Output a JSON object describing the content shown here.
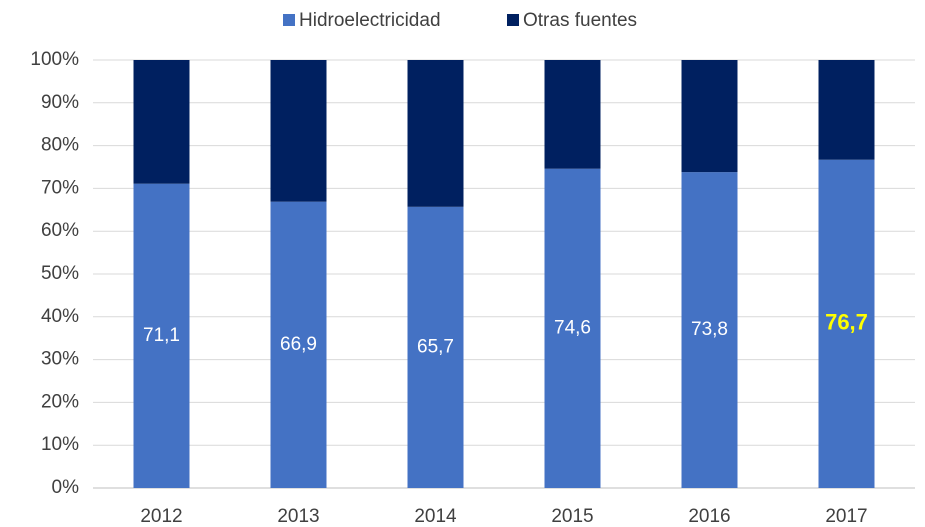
{
  "chart_data": {
    "type": "stacked_bar",
    "categories": [
      "2012",
      "2013",
      "2014",
      "2015",
      "2016",
      "2017"
    ],
    "series": [
      {
        "name": "Hidroelectricidad",
        "color": "#4472c4",
        "values": [
          71.1,
          66.9,
          65.7,
          74.6,
          73.8,
          76.7
        ],
        "value_labels": [
          "71,1",
          "66,9",
          "65,7",
          "74,6",
          "73,8",
          "76,7"
        ],
        "value_label_colors": [
          "#ffffff",
          "#ffffff",
          "#ffffff",
          "#ffffff",
          "#ffffff",
          "#ffff00"
        ]
      },
      {
        "name": "Otras fuentes",
        "color": "#002060",
        "values": [
          28.9,
          33.1,
          34.3,
          25.4,
          26.2,
          23.3
        ]
      }
    ],
    "ylim": [
      0,
      100
    ],
    "yticks": [
      {
        "value": 0,
        "label": "0%"
      },
      {
        "value": 10,
        "label": "10%"
      },
      {
        "value": 20,
        "label": "20%"
      },
      {
        "value": 30,
        "label": "30%"
      },
      {
        "value": 40,
        "label": "40%"
      },
      {
        "value": 50,
        "label": "50%"
      },
      {
        "value": 60,
        "label": "60%"
      },
      {
        "value": 70,
        "label": "70%"
      },
      {
        "value": 80,
        "label": "80%"
      },
      {
        "value": 90,
        "label": "90%"
      },
      {
        "value": 100,
        "label": "100%"
      }
    ],
    "grid": true,
    "legend": "top"
  }
}
